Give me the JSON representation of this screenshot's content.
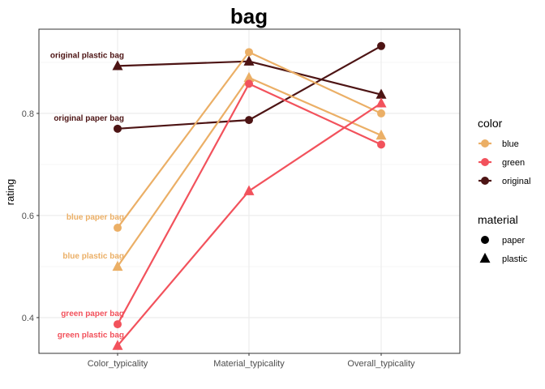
{
  "chart_data": {
    "type": "line",
    "title": "bag",
    "xlabel": "",
    "ylabel": "rating",
    "categories": [
      "Color_typicality",
      "Material_typicality",
      "Overall_typicality"
    ],
    "yticks": [
      "0.4",
      "0.6",
      "0.8"
    ],
    "ylim": [
      0.33,
      0.965
    ],
    "grid": true,
    "legend_position": "right",
    "colors": {
      "blue": "#EBAF66",
      "green": "#F2525C",
      "original": "#4D1414"
    },
    "color_legend": {
      "title": "color",
      "items": [
        "blue",
        "green",
        "original"
      ]
    },
    "material_legend": {
      "title": "material",
      "items": [
        {
          "label": "paper",
          "shape": "circle"
        },
        {
          "label": "plastic",
          "shape": "triangle"
        }
      ]
    },
    "series": [
      {
        "label": "original plastic bag",
        "color": "original",
        "material": "plastic",
        "values": [
          0.893,
          0.902,
          0.837
        ]
      },
      {
        "label": "original paper bag",
        "color": "original",
        "material": "paper",
        "values": [
          0.77,
          0.787,
          0.932
        ]
      },
      {
        "label": "blue paper bag",
        "color": "blue",
        "material": "paper",
        "values": [
          0.576,
          0.92,
          0.8
        ]
      },
      {
        "label": "blue plastic bag",
        "color": "blue",
        "material": "plastic",
        "values": [
          0.5,
          0.87,
          0.757
        ]
      },
      {
        "label": "green paper bag",
        "color": "green",
        "material": "paper",
        "values": [
          0.387,
          0.858,
          0.739
        ]
      },
      {
        "label": "green plastic bag",
        "color": "green",
        "material": "plastic",
        "values": [
          0.345,
          0.648,
          0.82
        ]
      }
    ]
  }
}
